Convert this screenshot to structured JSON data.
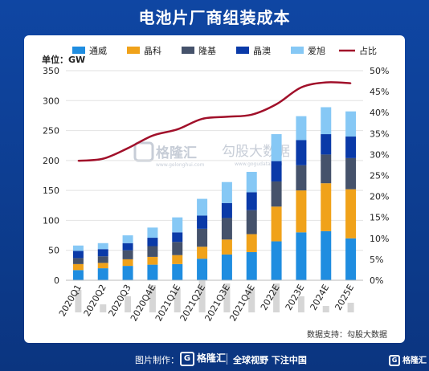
{
  "title": "电池片厂商组装成本",
  "unit_label": "单位：GW",
  "source": "数据支持：勾股大数据",
  "watermark": {
    "left": "格隆汇",
    "left_sub": "www.gelonghui.com",
    "right": "勾股大数据",
    "right_sub": "www.gogudata.com"
  },
  "footer": {
    "pic_label": "图片制作：",
    "brand": "格隆汇",
    "slogan": "全球视野 下注中国",
    "brand_right": "格隆汇"
  },
  "colors": {
    "series": [
      "#1f8de0",
      "#f0a21a",
      "#45526b",
      "#0a3aa8",
      "#86c8f5"
    ],
    "line": "#a1102a",
    "bg_bar": "#d6d6d6"
  },
  "chart_data": {
    "type": "bar",
    "stacked": true,
    "categories": [
      "2020Q1",
      "2020Q2",
      "2020Q3",
      "2020Q4E",
      "2021Q1E",
      "2021Q2E",
      "2021Q3E",
      "2021Q4E",
      "2022E",
      "2023E",
      "2024E",
      "2025E"
    ],
    "series": [
      {
        "name": "通威",
        "values": [
          17,
          20,
          24,
          26,
          27,
          36,
          43,
          47,
          65,
          80,
          82,
          70
        ]
      },
      {
        "name": "晶科",
        "values": [
          10,
          9,
          11,
          13,
          15,
          20,
          25,
          30,
          58,
          70,
          80,
          82
        ]
      },
      {
        "name": "隆基",
        "values": [
          10,
          11,
          15,
          18,
          22,
          30,
          36,
          40,
          42,
          42,
          48,
          52
        ]
      },
      {
        "name": "晶澳",
        "values": [
          12,
          12,
          12,
          14,
          16,
          22,
          25,
          30,
          34,
          42,
          34,
          36
        ]
      },
      {
        "name": "爱旭",
        "values": [
          9,
          10,
          13,
          17,
          25,
          28,
          35,
          34,
          45,
          40,
          45,
          42
        ]
      }
    ],
    "line": {
      "name": "占比",
      "values": [
        28.5,
        29,
        31.5,
        34.5,
        36,
        38.5,
        39,
        39.5,
        42,
        46,
        47.2,
        47
      ]
    },
    "ylim": [
      0,
      350
    ],
    "yticks": [
      0,
      50,
      100,
      150,
      200,
      250,
      300,
      350
    ],
    "y2lim": [
      0,
      50
    ],
    "y2ticks": [
      "0%",
      "5%",
      "10%",
      "15%",
      "20%",
      "25%",
      "30%",
      "35%",
      "40%",
      "45%",
      "50%"
    ],
    "bg_bars": [
      28,
      10,
      20,
      34,
      30,
      40,
      36,
      30,
      36,
      20,
      8,
      12
    ],
    "legend_position": "top"
  }
}
